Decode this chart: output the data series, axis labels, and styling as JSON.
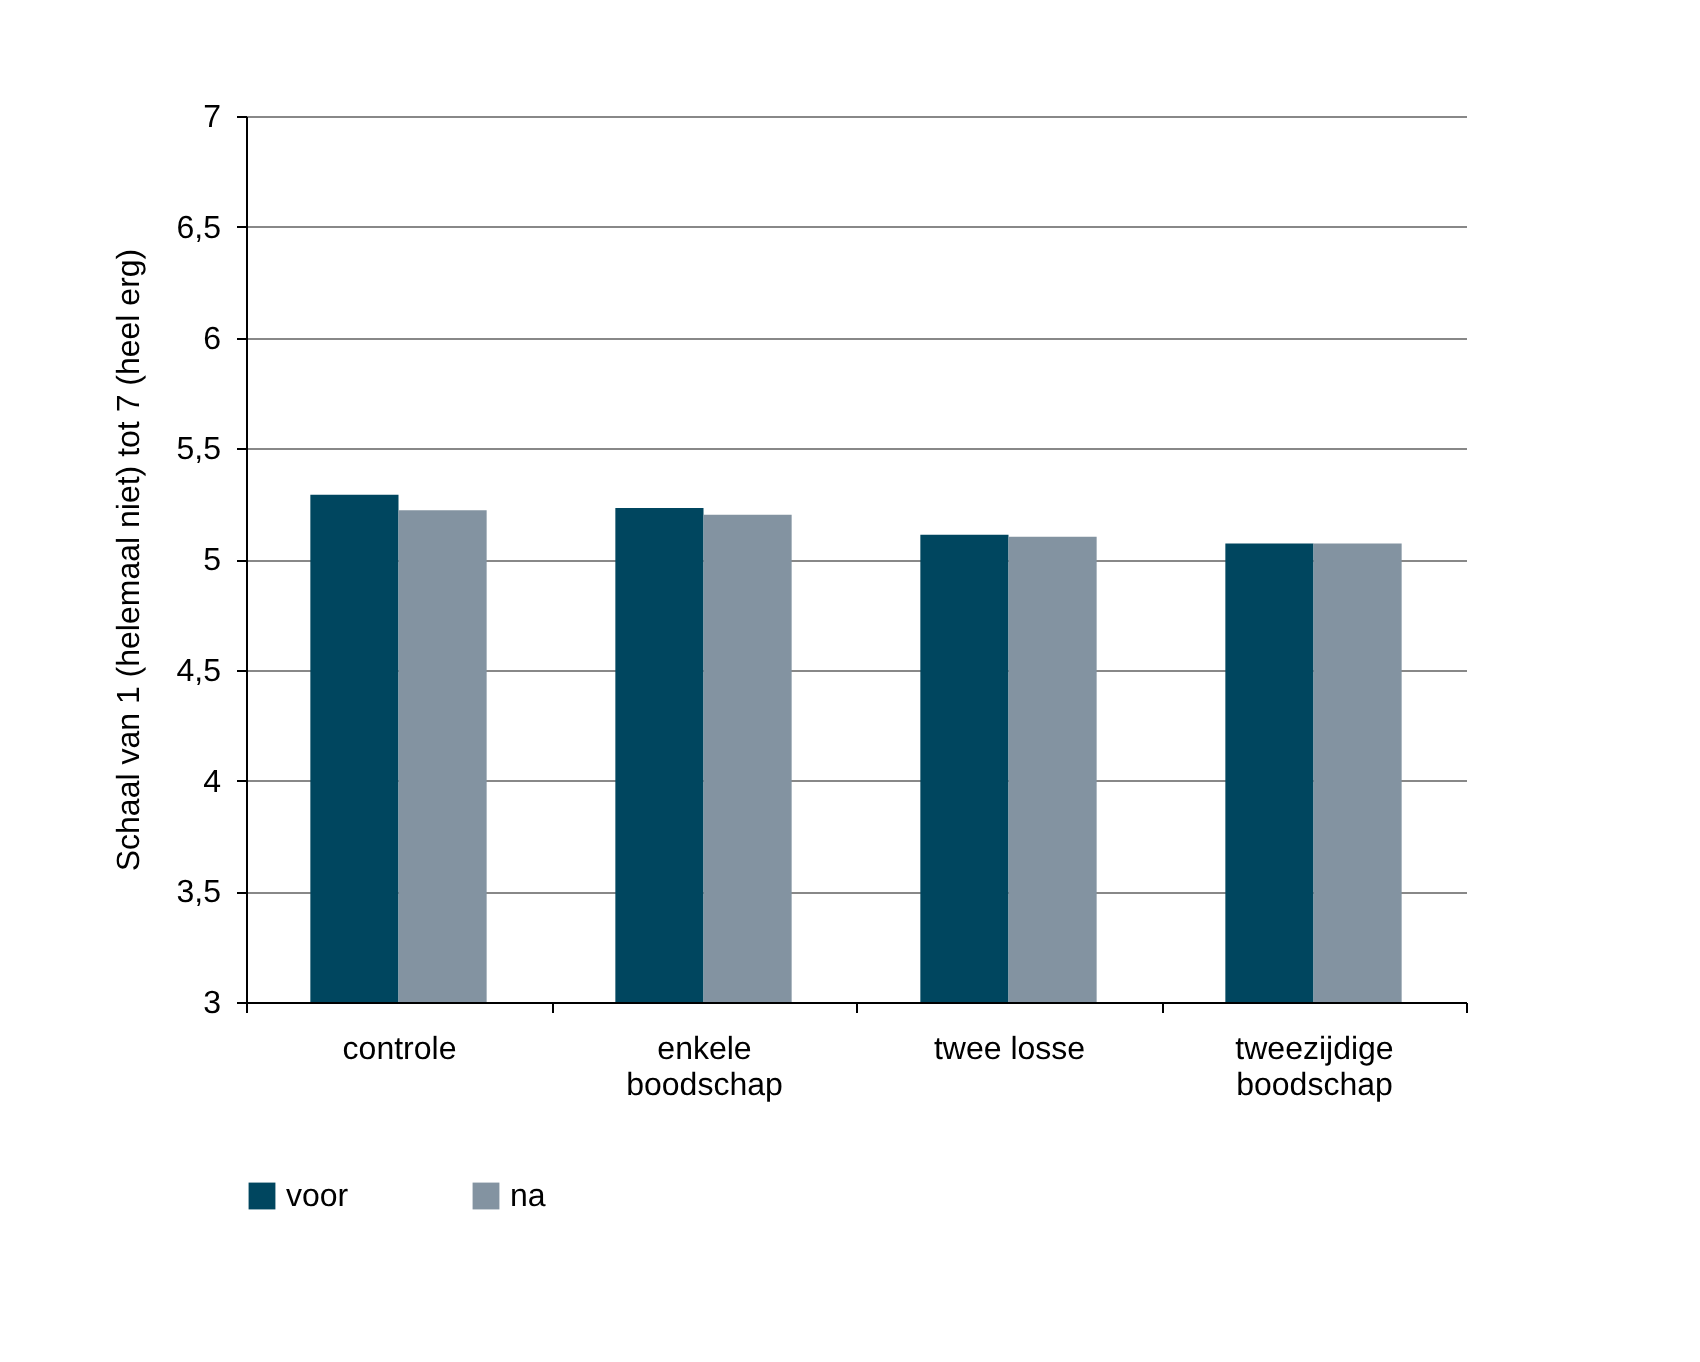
{
  "chart_data": {
    "type": "bar",
    "ylabel": "Schaal van 1 (helemaal niet) tot 7 (heel erg)",
    "categories": [
      "controle",
      "enkele boodschap",
      "twee losse",
      "tweezijdige boodschap"
    ],
    "series": [
      {
        "name": "voor",
        "color": "#00465f",
        "values": [
          5.29,
          5.23,
          5.11,
          5.07
        ]
      },
      {
        "name": "na",
        "color": "#8393a1",
        "values": [
          5.22,
          5.2,
          5.1,
          5.07
        ]
      }
    ],
    "ylim": [
      3,
      7
    ],
    "yticks": [
      {
        "value": 3,
        "label": "3"
      },
      {
        "value": 3.5,
        "label": "3,5"
      },
      {
        "value": 4,
        "label": "4"
      },
      {
        "value": 4.5,
        "label": "4,5"
      },
      {
        "value": 5,
        "label": "5"
      },
      {
        "value": 5.5,
        "label": "5,5"
      },
      {
        "value": 6,
        "label": "6"
      },
      {
        "value": 6.5,
        "label": "6,5"
      },
      {
        "value": 7,
        "label": "7"
      }
    ],
    "grid": "y",
    "legend": "bottom"
  }
}
